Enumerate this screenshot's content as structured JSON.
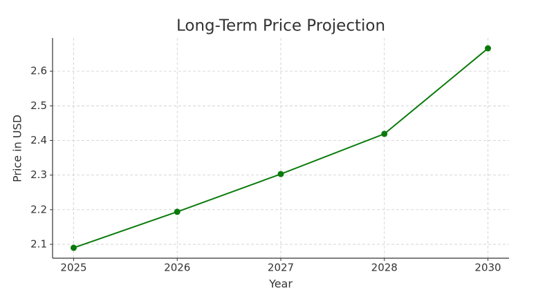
{
  "chart_data": {
    "type": "line",
    "title": "Long-Term Price Projection",
    "x_label": "Year",
    "y_label": "Price in USD",
    "categories": [
      "2025",
      "2026",
      "2027",
      "2028",
      "2030"
    ],
    "series": [
      {
        "name": "Price",
        "color": "#0a7a0a",
        "values": [
          2.09,
          2.194,
          2.303,
          2.419,
          2.666
        ]
      }
    ],
    "ylim": [
      2.06,
      2.696
    ],
    "yticks": [
      2.1,
      2.2,
      2.3,
      2.4,
      2.5,
      2.6
    ],
    "grid": true
  }
}
